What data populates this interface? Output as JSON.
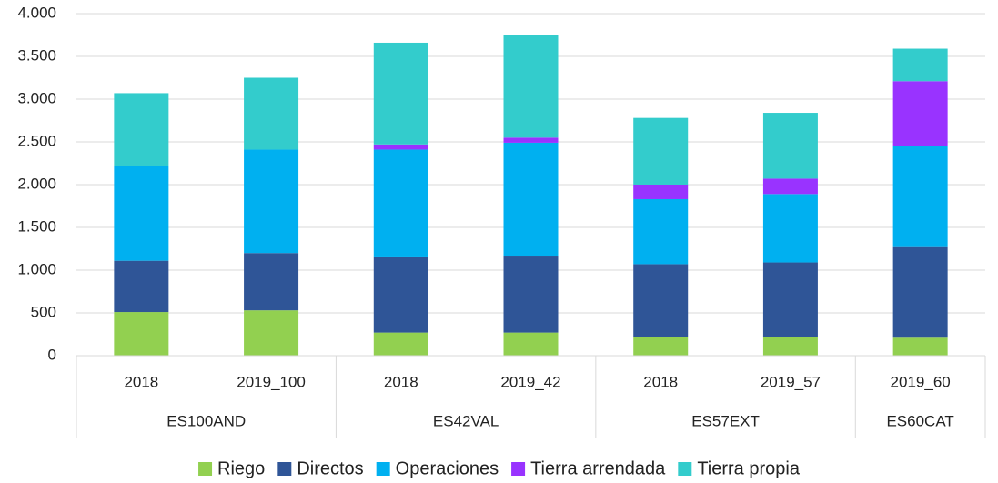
{
  "chart_data": {
    "type": "stacked_bar",
    "categories": [
      "2018",
      "2019_100",
      "2018",
      "2019_42",
      "2018",
      "2019_57",
      "2019_60"
    ],
    "groups": [
      {
        "name": "ES100AND",
        "count": 2
      },
      {
        "name": "ES42VAL",
        "count": 2
      },
      {
        "name": "ES57EXT",
        "count": 2
      },
      {
        "name": "ES60CAT",
        "count": 1
      }
    ],
    "series": [
      {
        "name": "Riego",
        "color": "#92d050",
        "values": [
          510,
          530,
          270,
          270,
          220,
          220,
          210
        ]
      },
      {
        "name": "Directos",
        "color": "#2f5597",
        "values": [
          600,
          670,
          890,
          900,
          850,
          870,
          1070
        ]
      },
      {
        "name": "Operaciones",
        "color": "#00b0f0",
        "values": [
          1110,
          1210,
          1250,
          1320,
          760,
          800,
          1170
        ]
      },
      {
        "name": "Tierra arrendada",
        "color": "#9933ff",
        "values": [
          0,
          0,
          60,
          60,
          170,
          180,
          760
        ]
      },
      {
        "name": "Tierra propia",
        "color": "#33cccc",
        "values": [
          850,
          840,
          1190,
          1200,
          780,
          770,
          380
        ]
      }
    ],
    "ylim": [
      0,
      4000
    ],
    "yticks": [
      0,
      500,
      {
        "value": 1000,
        "label": "1.000"
      },
      {
        "value": 1500,
        "label": "1.500"
      },
      {
        "value": 2000,
        "label": "2.000"
      },
      {
        "value": 2500,
        "label": "2.500"
      },
      {
        "value": 3000,
        "label": "3.000"
      },
      {
        "value": 3500,
        "label": "3.500"
      },
      {
        "value": 4000,
        "label": "4.000"
      }
    ],
    "grid": true,
    "legend": "bottom"
  }
}
